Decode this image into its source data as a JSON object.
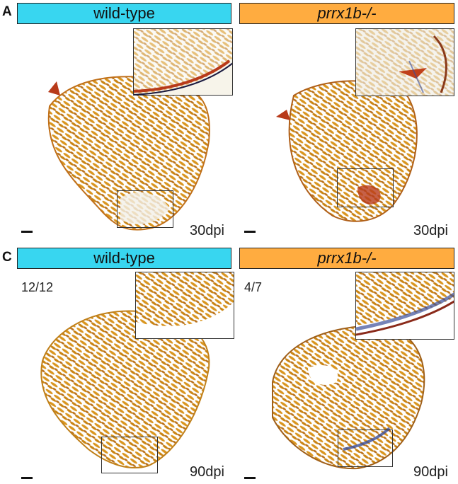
{
  "panels": {
    "A": {
      "letter": "A",
      "left_title": "wild-type",
      "right_title": "prrx1b-/-",
      "left_timepoint": "30dpi",
      "right_timepoint": "30dpi"
    },
    "C": {
      "letter": "C",
      "left_title": "wild-type",
      "right_title": "prrx1b-/-",
      "left_ratio": "12/12",
      "right_ratio": "4/7",
      "left_timepoint": "90dpi",
      "right_timepoint": "90dpi"
    }
  },
  "colors": {
    "wildtype_banner": "#38d6f0",
    "mutant_banner": "#ffac40",
    "muscle": "#d9951f",
    "fibrin": "#b83a1a",
    "collagen": "#3a4e9a"
  }
}
